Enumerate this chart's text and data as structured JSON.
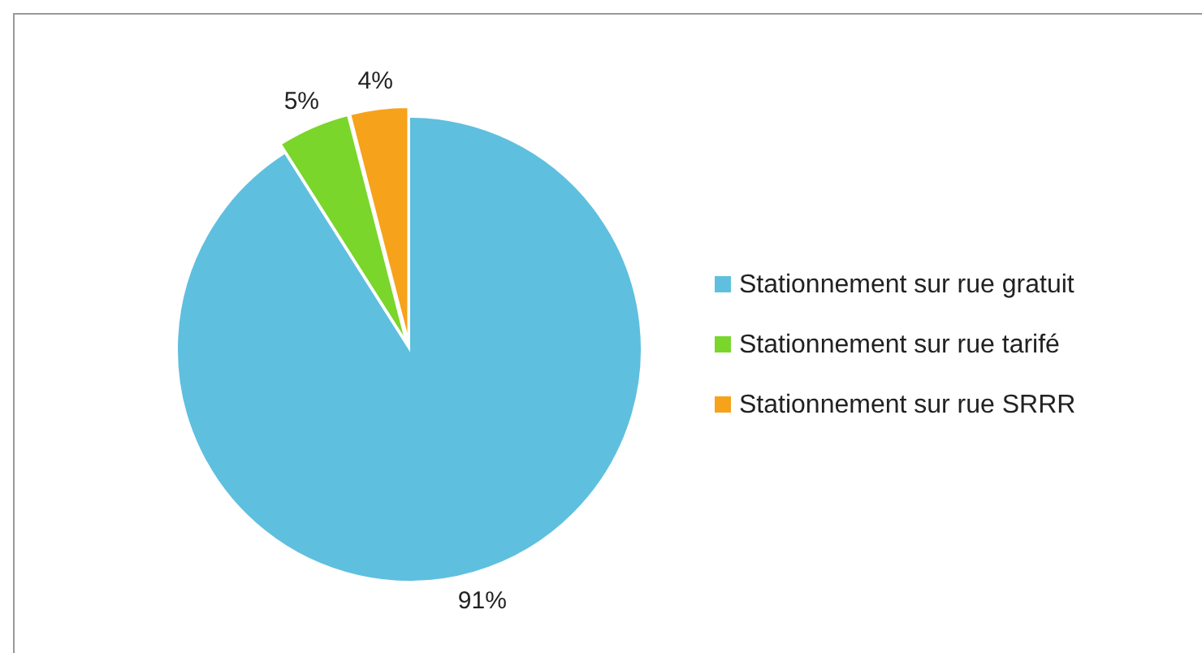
{
  "chart_data": {
    "type": "pie",
    "categories": [
      "Stationnement sur rue gratuit",
      "Stationnement sur rue tarifé",
      "Stationnement sur rue SRRR"
    ],
    "values": [
      91,
      5,
      4
    ],
    "colors": [
      "#5fbfdf",
      "#7ad62a",
      "#f7a21b"
    ],
    "value_labels": [
      "91%",
      "5%",
      "4%"
    ],
    "legend": "right"
  }
}
